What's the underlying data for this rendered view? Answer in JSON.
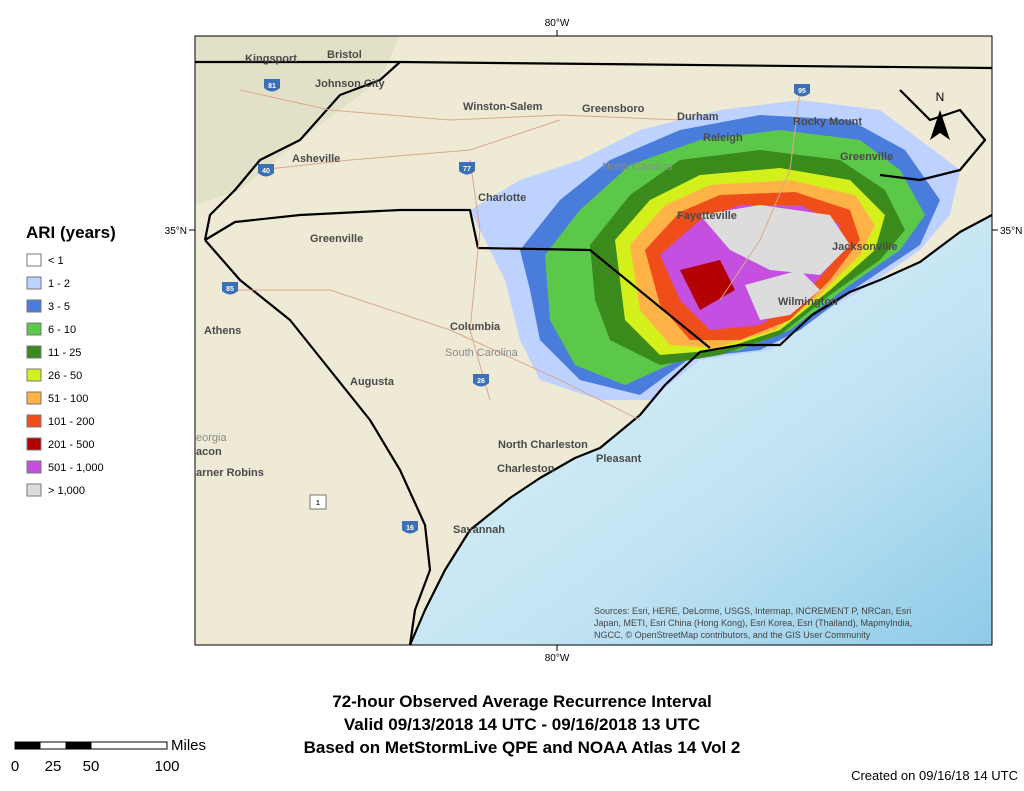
{
  "map": {
    "lon_labels": [
      "80°W",
      "80°W"
    ],
    "lat_labels": [
      "35°N",
      "35°N"
    ],
    "north_arrow": "N",
    "places": [
      "Kingsport",
      "Bristol",
      "Johnson City",
      "Winston-Salem",
      "Greensboro",
      "Durham",
      "Raleigh",
      "Rocky Mount",
      "Asheville",
      "North Carolina",
      "Greenville",
      "Charlotte",
      "Fayetteville",
      "Jacksonville",
      "Greenville",
      "Wilmington",
      "Athens",
      "Columbia",
      "South Carolina",
      "Augusta",
      "North Charleston",
      "Charleston",
      "Pleasant",
      "Savannah",
      "eorgia",
      "acon",
      "arner Robins"
    ],
    "highways": [
      "81",
      "40",
      "77",
      "85",
      "95",
      "26",
      "16",
      "1"
    ],
    "attribution": [
      "Sources: Esri, HERE, DeLorme, USGS, Intermap, INCREMENT P, NRCan, Esri",
      "Japan, METI, Esri China (Hong Kong), Esri Korea, Esri (Thailand), MapmyIndia,",
      "NGCC, © OpenStreetMap contributors, and the GIS User Community"
    ]
  },
  "legend": {
    "title": "ARI (years)",
    "items": [
      {
        "label": "< 1",
        "color": "#ffffff"
      },
      {
        "label": "1 - 2",
        "color": "#bed2ff"
      },
      {
        "label": "3 - 5",
        "color": "#4a7ddb"
      },
      {
        "label": "6 - 10",
        "color": "#5cc84a"
      },
      {
        "label": "11 - 25",
        "color": "#3a8a1c"
      },
      {
        "label": "26 - 50",
        "color": "#d4f01a"
      },
      {
        "label": "51 - 100",
        "color": "#ffb347"
      },
      {
        "label": "101 - 200",
        "color": "#ef4e1a"
      },
      {
        "label": "201 - 500",
        "color": "#b30000"
      },
      {
        "label": "501 - 1,000",
        "color": "#c44fe0"
      },
      {
        "label": "> 1,000",
        "color": "#dcdcdc"
      }
    ]
  },
  "title_lines": [
    "72-hour Observed Average Recurrence Interval",
    "Valid 09/13/2018 14 UTC - 09/16/2018 13 UTC",
    "Based on MetStormLive QPE and NOAA Atlas 14 Vol 2"
  ],
  "scale_bar": {
    "unit": "Miles",
    "labels": [
      "0",
      "25",
      "50",
      "100"
    ]
  },
  "created": "Created on 09/16/18 14 UTC"
}
